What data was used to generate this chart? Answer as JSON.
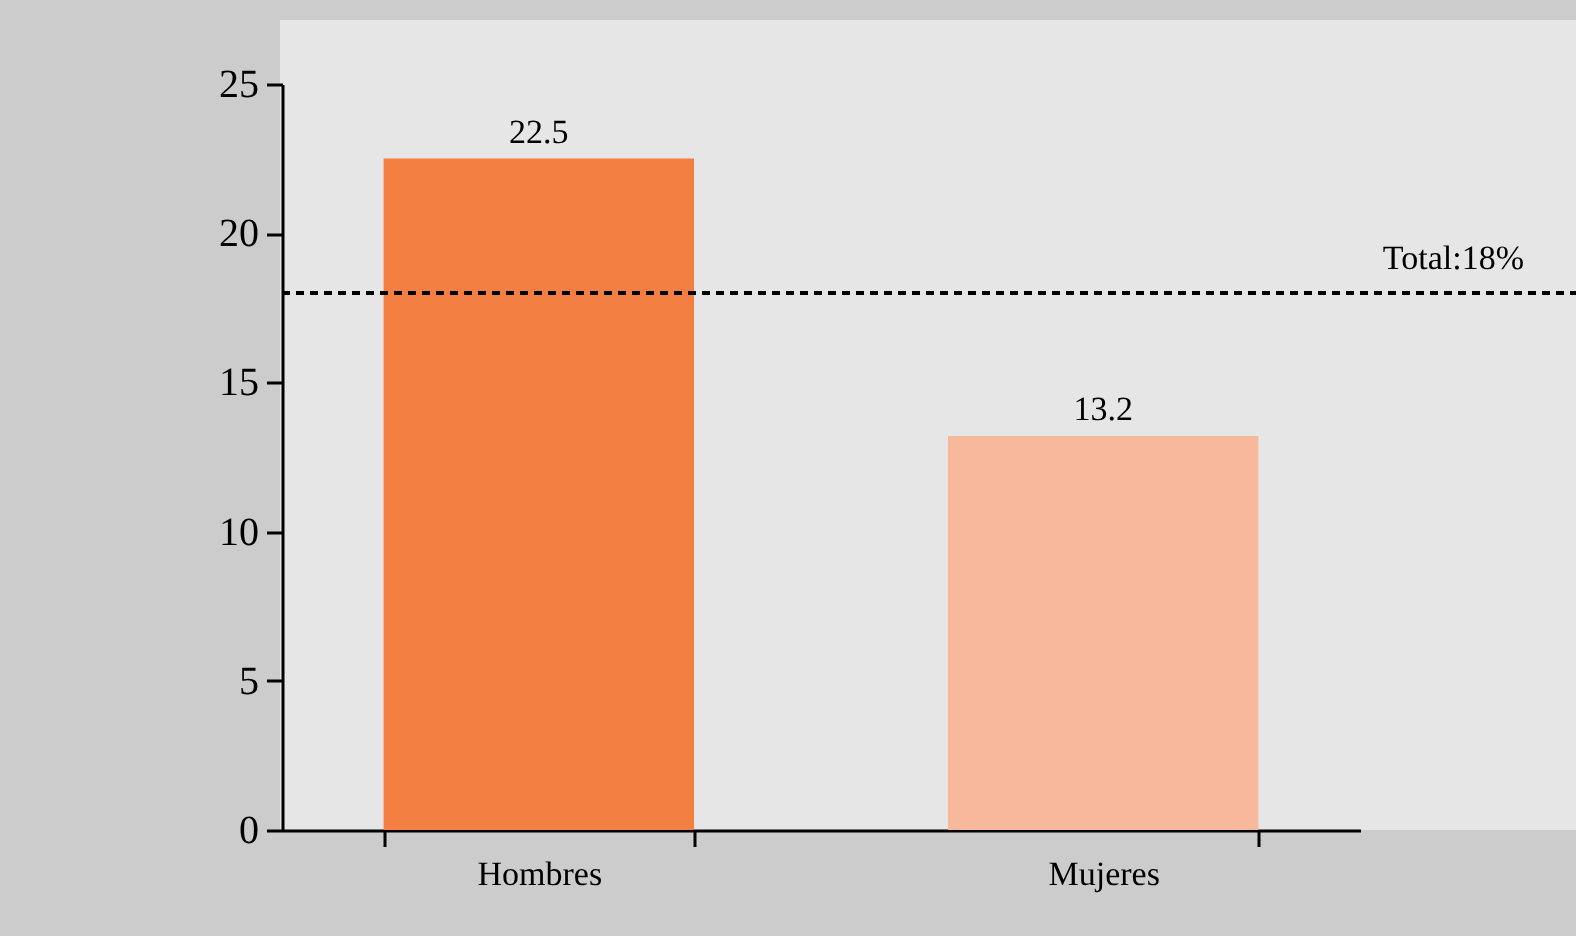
{
  "chart_data": {
    "type": "bar",
    "categories": [
      "Hombres",
      "Mujeres"
    ],
    "values": [
      22.5,
      13.2
    ],
    "colors": [
      "#f47f43",
      "#f7b89c"
    ],
    "ylim": [
      0,
      25
    ],
    "yticks": [
      0,
      5,
      10,
      15,
      20,
      25
    ],
    "grid": false,
    "data_labels": true,
    "ref_lines": [
      {
        "axis": "y",
        "value": 18,
        "label": "Total:18%",
        "line_style": "dashed",
        "color": "#000000"
      }
    ]
  }
}
